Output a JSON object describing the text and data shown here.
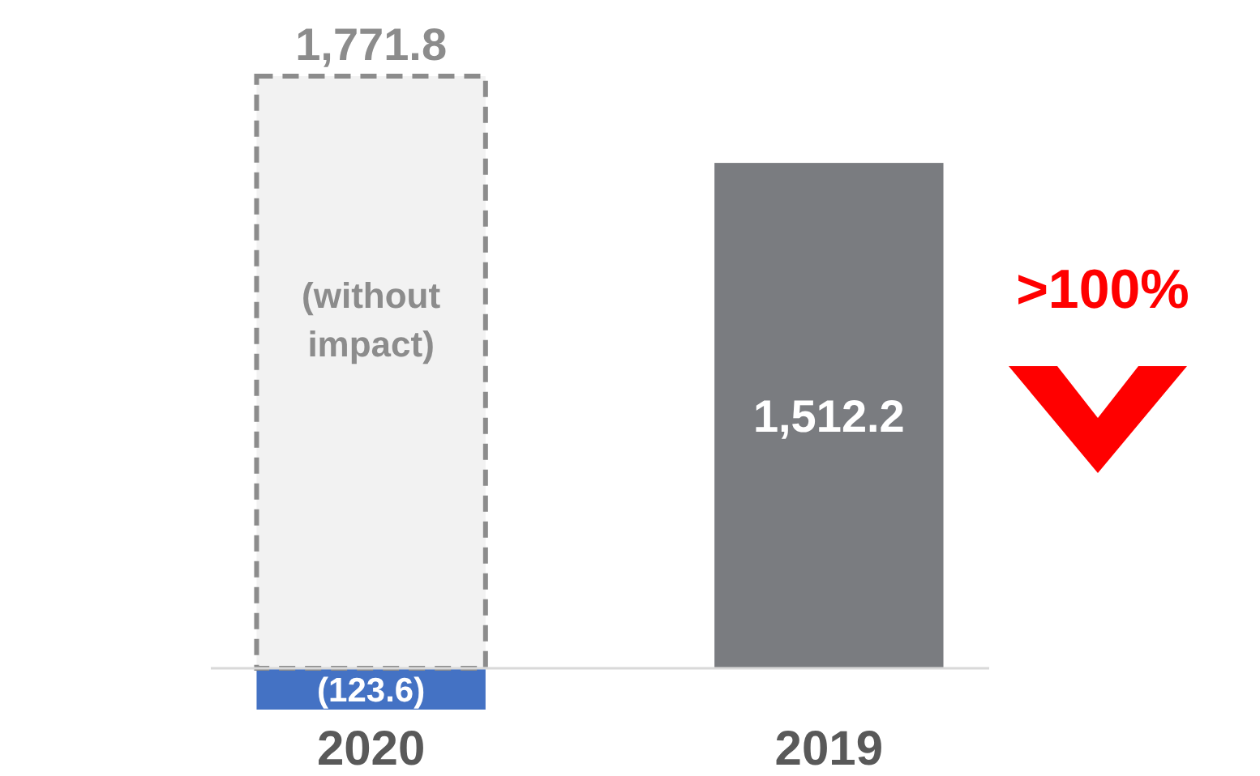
{
  "chart_data": {
    "type": "bar",
    "stacked": true,
    "categories": [
      "2020",
      "2019"
    ],
    "series": [
      {
        "values": [
          -123.6,
          1512.2
        ],
        "colors": [
          "#4472c4",
          "#7a7c80"
        ],
        "value_labels": [
          "(123.6)",
          "1,512.2"
        ]
      },
      {
        "values": [
          1771.8,
          null
        ],
        "color": "#f2f2f2",
        "line_style": "dashed",
        "value_labels": [
          "1,771.8",
          null
        ]
      }
    ],
    "annotations": [
      "(without impact)",
      ">100%"
    ]
  }
}
